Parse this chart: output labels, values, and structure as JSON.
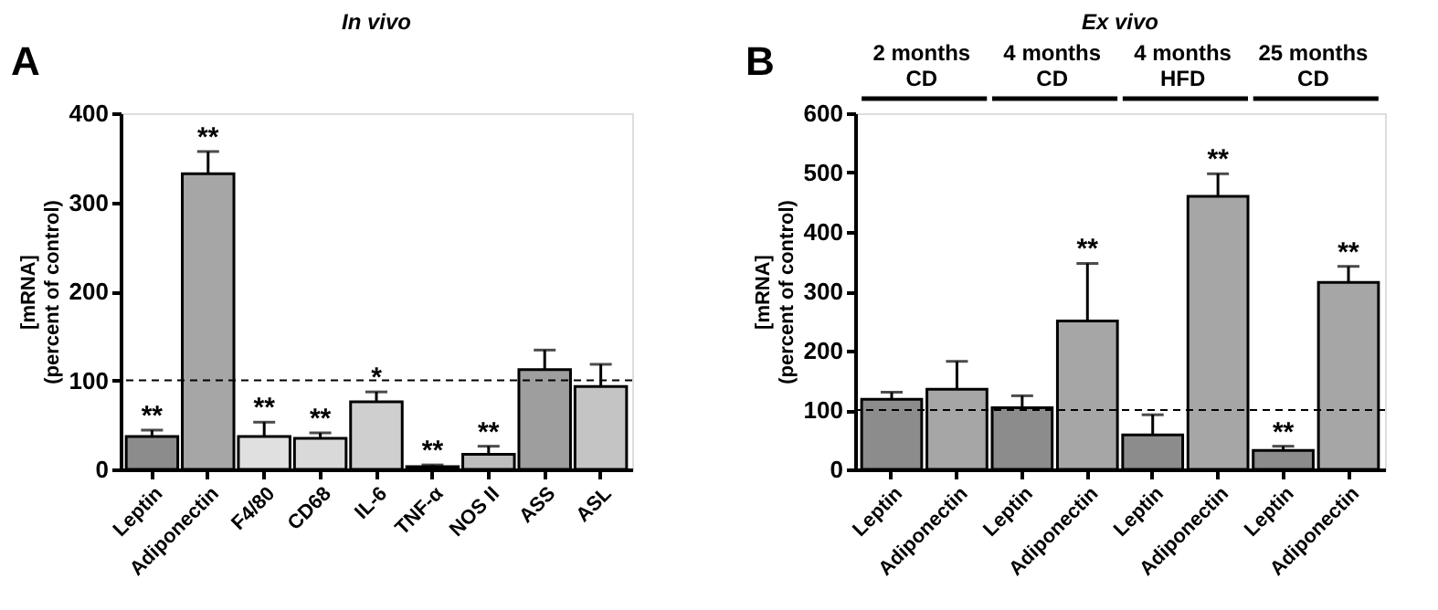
{
  "chart_data": [
    {
      "type": "bar",
      "title": "In vivo",
      "subtitle": "A",
      "ylabel": "[mRNA]\n(percent of control)",
      "categories": [
        "Leptin",
        "Adiponectin",
        "F4/80",
        "CD68",
        "IL-6",
        "TNF-α",
        "NOS II",
        "ASS",
        "ASL"
      ],
      "values": [
        37,
        332,
        37,
        35,
        76,
        3,
        17,
        112,
        93
      ],
      "colors": [
        "#8c8c8c",
        "#a6a6a6",
        "#e0e0e0",
        "#d9d9d9",
        "#cfcfcf",
        "#333333",
        "#bdbdbd",
        "#9e9e9e",
        "#c4c4c4"
      ],
      "errors": [
        [
          37,
          44
        ],
        [
          332,
          357
        ],
        [
          37,
          53
        ],
        [
          35,
          41
        ],
        [
          76,
          87
        ],
        [
          3,
          5
        ],
        [
          17,
          26
        ],
        [
          112,
          134
        ],
        [
          93,
          118
        ]
      ],
      "value_labels": [
        "**",
        "**",
        "**",
        "**",
        "*",
        "**",
        "**",
        null,
        null
      ],
      "ylim": [
        0,
        400
      ],
      "yticks": [
        0,
        100,
        200,
        300,
        400
      ],
      "grid": false,
      "ref_lines": [
        {
          "axis": "y",
          "value": 100,
          "line_style": "dashed"
        }
      ]
    },
    {
      "type": "bar",
      "title": "Ex vivo",
      "subtitle": "B",
      "ylabel": "[mRNA]\n(percent of control)",
      "categories": [
        "Leptin",
        "Adiponectin",
        "Leptin",
        "Adiponectin",
        "Leptin",
        "Adiponectin",
        "Leptin",
        "Adiponectin"
      ],
      "values": [
        118,
        135,
        104,
        250,
        58,
        460,
        32,
        315
      ],
      "colors": [
        "#8c8c8c",
        "#a6a6a6",
        "#8c8c8c",
        "#a6a6a6",
        "#8c8c8c",
        "#a6a6a6",
        "#8c8c8c",
        "#a6a6a6"
      ],
      "errors": [
        [
          118,
          130
        ],
        [
          135,
          182
        ],
        [
          104,
          124
        ],
        [
          250,
          347
        ],
        [
          58,
          92
        ],
        [
          460,
          498
        ],
        [
          32,
          39
        ],
        [
          315,
          342
        ]
      ],
      "value_labels": [
        null,
        null,
        null,
        "**",
        null,
        "**",
        "**",
        "**"
      ],
      "annotations": [
        "2 months\nCD",
        "4 months\nCD",
        "4 months\nHFD",
        "25 months\nCD"
      ],
      "ylim": [
        0,
        600
      ],
      "yticks": [
        0,
        100,
        200,
        300,
        400,
        500,
        600
      ],
      "grid": false,
      "ref_lines": [
        {
          "axis": "y",
          "value": 100,
          "line_style": "dashed"
        }
      ]
    }
  ]
}
